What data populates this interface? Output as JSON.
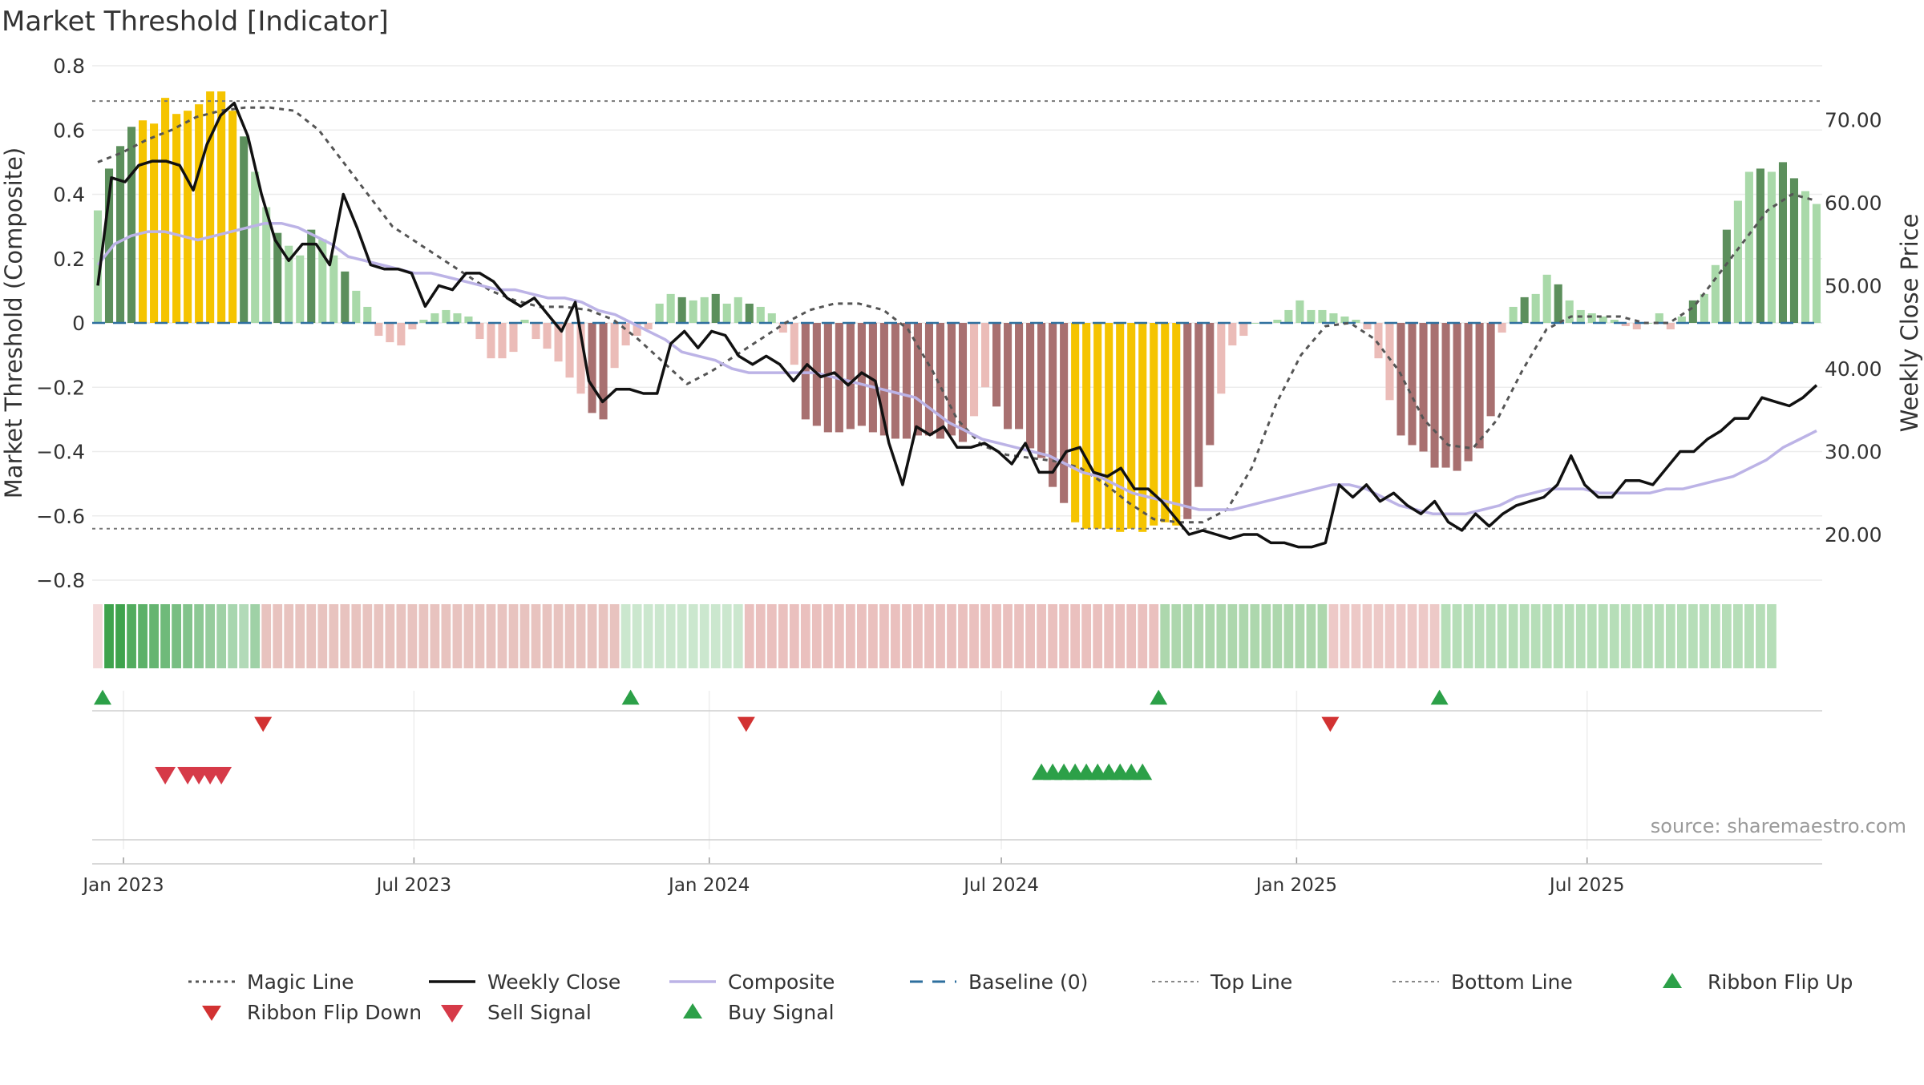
{
  "title": "Market Threshold [Indicator]",
  "source_note": "source: sharemaestro.com",
  "chart_data": {
    "type": "bar",
    "title": "Market Threshold [Indicator]",
    "ylabel": "Market Threshold (Composite)",
    "y2label": "Weekly Close Price",
    "ylim": [
      -0.8,
      0.8
    ],
    "y2lim": [
      14.5,
      76.5
    ],
    "yticks": [
      "0.8",
      "0.6",
      "0.4",
      "0.2",
      "0",
      "−0.2",
      "−0.4",
      "−0.6",
      "−0.8"
    ],
    "yticks_values": [
      0.8,
      0.6,
      0.4,
      0.2,
      0,
      -0.2,
      -0.4,
      -0.6,
      -0.8
    ],
    "y2ticks": [
      "70.00",
      "60.00",
      "50.00",
      "40.00",
      "30.00",
      "20.00"
    ],
    "y2ticks_values": [
      70,
      60,
      50,
      40,
      30,
      20
    ],
    "xticks": [
      "Jan 2023",
      "Jul 2023",
      "Jan 2024",
      "Jul 2024",
      "Jan 2025",
      "Jul 2025"
    ],
    "xticks_dates": [
      "2023-01-01",
      "2023-07-01",
      "2024-01-01",
      "2024-07-01",
      "2025-01-01",
      "2025-07-01"
    ],
    "first_week": "2022-12-16",
    "top_line": 0.69,
    "bottom_line": -0.64,
    "grid": true,
    "legend_position": "bottom",
    "colors": {
      "strong_pos": "#5c8f5c",
      "weak_pos": "#a9d9a9",
      "strong_neg": "#a87070",
      "weak_neg": "#ebbcb8",
      "extreme": "#f5c400",
      "weekly_close": "#111111",
      "composite": "#bcb3e6",
      "magic_line": "#555555",
      "baseline": "#2e6f9e",
      "ref_line": "#777777",
      "buy": "#2ca048",
      "sell": "#d63a48"
    },
    "composite": [
      0.35,
      0.48,
      0.55,
      0.61,
      0.63,
      0.62,
      0.7,
      0.65,
      0.66,
      0.68,
      0.72,
      0.72,
      0.66,
      0.58,
      0.47,
      0.36,
      0.28,
      0.24,
      0.21,
      0.29,
      0.26,
      0.21,
      0.16,
      0.1,
      0.05,
      -0.04,
      -0.06,
      -0.07,
      -0.02,
      0.01,
      0.03,
      0.04,
      0.03,
      0.02,
      -0.05,
      -0.11,
      -0.11,
      -0.09,
      0.01,
      -0.05,
      -0.08,
      -0.12,
      -0.17,
      -0.22,
      -0.28,
      -0.3,
      -0.14,
      -0.07,
      -0.04,
      -0.02,
      0.06,
      0.09,
      0.08,
      0.07,
      0.08,
      0.09,
      0.06,
      0.08,
      0.06,
      0.05,
      0.03,
      -0.03,
      -0.13,
      -0.3,
      -0.32,
      -0.34,
      -0.34,
      -0.33,
      -0.32,
      -0.34,
      -0.35,
      -0.36,
      -0.36,
      -0.35,
      -0.35,
      -0.36,
      -0.35,
      -0.37,
      -0.29,
      -0.2,
      -0.26,
      -0.33,
      -0.33,
      -0.39,
      -0.42,
      -0.51,
      -0.56,
      -0.62,
      -0.64,
      -0.64,
      -0.64,
      -0.65,
      -0.64,
      -0.65,
      -0.63,
      -0.62,
      -0.63,
      -0.61,
      -0.51,
      -0.38,
      -0.22,
      -0.07,
      -0.04,
      0.0,
      0.0,
      0.01,
      0.04,
      0.07,
      0.04,
      0.04,
      0.03,
      0.02,
      0.01,
      -0.02,
      -0.11,
      -0.24,
      -0.35,
      -0.38,
      -0.4,
      -0.45,
      -0.45,
      -0.46,
      -0.43,
      -0.39,
      -0.29,
      -0.03,
      0.05,
      0.08,
      0.09,
      0.15,
      0.12,
      0.07,
      0.04,
      0.03,
      0.02,
      0.01,
      -0.01,
      -0.02,
      0.0,
      0.03,
      -0.02,
      0.02,
      0.07,
      0.09,
      0.18,
      0.29,
      0.38,
      0.47,
      0.48,
      0.47,
      0.5,
      0.45,
      0.41,
      0.37
    ],
    "weekly_close": [
      50.0,
      63.0,
      62.5,
      64.5,
      65.0,
      65.0,
      64.5,
      61.5,
      67.0,
      70.5,
      72.0,
      68.0,
      61.0,
      55.5,
      53.0,
      55.0,
      55.0,
      52.5,
      61.0,
      57.0,
      52.5,
      52.0,
      52.0,
      51.5,
      47.5,
      50.0,
      49.5,
      51.5,
      51.5,
      50.5,
      48.5,
      47.5,
      48.5,
      46.5,
      44.5,
      48.0,
      38.5,
      36.0,
      37.5,
      37.5,
      37.0,
      37.0,
      43.0,
      44.5,
      42.5,
      44.5,
      44.0,
      41.5,
      40.5,
      41.5,
      40.5,
      38.5,
      40.5,
      39.0,
      39.5,
      38.0,
      39.5,
      38.5,
      31.0,
      26.0,
      33.0,
      32.0,
      33.0,
      30.5,
      30.5,
      31.0,
      30.0,
      28.5,
      31.0,
      27.5,
      27.5,
      30.0,
      30.5,
      27.5,
      27.0,
      28.0,
      25.5,
      25.5,
      24.0,
      22.0,
      20.0,
      20.5,
      20.0,
      19.5,
      20.0,
      20.0,
      19.0,
      19.0,
      18.5,
      18.5,
      19.0,
      26.0,
      24.5,
      26.0,
      24.0,
      25.0,
      23.5,
      22.5,
      24.0,
      21.5,
      20.5,
      22.5,
      21.0,
      22.5,
      23.5,
      24.0,
      24.5,
      26.0,
      29.5,
      26.0,
      24.5,
      24.5,
      26.5,
      26.5,
      26.0,
      28.0,
      30.0,
      30.0,
      31.5,
      32.5,
      34.0,
      34.0,
      36.5,
      36.0,
      35.5,
      36.5,
      38.0
    ],
    "composite_line": [
      52.5,
      55.0,
      56.0,
      56.5,
      56.5,
      56.0,
      55.5,
      56.0,
      56.5,
      57.0,
      57.5,
      57.5,
      57.0,
      56.0,
      55.0,
      53.5,
      53.0,
      52.5,
      52.0,
      51.5,
      51.5,
      51.0,
      50.5,
      50.0,
      49.5,
      49.5,
      49.0,
      48.5,
      48.5,
      48.0,
      47.0,
      46.5,
      45.5,
      44.5,
      43.5,
      42.0,
      41.5,
      41.0,
      40.0,
      39.5,
      39.5,
      39.5,
      39.5,
      39.5,
      39.0,
      38.5,
      38.0,
      37.5,
      37.0,
      36.5,
      35.0,
      33.5,
      32.5,
      31.5,
      31.0,
      30.5,
      30.0,
      29.5,
      28.5,
      27.5,
      27.0,
      26.0,
      25.0,
      24.5,
      24.0,
      23.5,
      23.0,
      23.0,
      23.0,
      23.5,
      24.0,
      24.5,
      25.0,
      25.5,
      26.0,
      26.0,
      25.5,
      24.5,
      23.5,
      23.0,
      22.5,
      22.5,
      22.5,
      23.0,
      23.5,
      24.5,
      25.0,
      25.5,
      25.5,
      25.5,
      25.0,
      25.0,
      25.0,
      25.0,
      25.5,
      25.5,
      26.0,
      26.5,
      27.0,
      28.0,
      29.0,
      30.5,
      31.5,
      32.5
    ],
    "magic_line": [
      0.5,
      0.53,
      0.57,
      0.6,
      0.64,
      0.66,
      0.67,
      0.67,
      0.66,
      0.6,
      0.5,
      0.4,
      0.3,
      0.25,
      0.2,
      0.15,
      0.1,
      0.07,
      0.05,
      0.05,
      0.04,
      0.01,
      -0.05,
      -0.12,
      -0.19,
      -0.15,
      -0.1,
      -0.05,
      0.0,
      0.04,
      0.06,
      0.06,
      0.04,
      -0.02,
      -0.15,
      -0.3,
      -0.38,
      -0.41,
      -0.42,
      -0.43,
      -0.45,
      -0.5,
      -0.56,
      -0.61,
      -0.62,
      -0.62,
      -0.58,
      -0.45,
      -0.25,
      -0.1,
      -0.01,
      0.0,
      -0.05,
      -0.15,
      -0.3,
      -0.38,
      -0.39,
      -0.3,
      -0.15,
      -0.02,
      0.02,
      0.02,
      0.02,
      0.0,
      0.0,
      0.05,
      0.15,
      0.25,
      0.35,
      0.4,
      0.38
    ],
    "ribbon_intensity": [
      0.2,
      1,
      1,
      0.9,
      0.85,
      0.8,
      0.75,
      0.7,
      0.65,
      0.6,
      0.55,
      0.5,
      0.45,
      0.4
    ],
    "ribbon_segments": [
      {
        "from": 0,
        "to": 1,
        "color": "#f2d3d3"
      },
      {
        "from": 1,
        "to": 15,
        "color": "#3fa34d"
      },
      {
        "from": 15,
        "to": 47,
        "color": "#e4b8b4"
      },
      {
        "from": 47,
        "to": 58,
        "color": "#c2e3c5"
      },
      {
        "from": 58,
        "to": 95,
        "color": "#e6b5b3"
      },
      {
        "from": 95,
        "to": 110,
        "color": "#9fd09f"
      },
      {
        "from": 110,
        "to": 120,
        "color": "#eabfbd"
      },
      {
        "from": 120,
        "to": 150,
        "color": "#a9d8ab"
      }
    ],
    "ribbon_flip_up_weeks": [
      1,
      48,
      95,
      120
    ],
    "ribbon_flip_down_weeks": [
      15,
      58,
      110
    ],
    "sell_signal_weeks": [
      6,
      8,
      9,
      10,
      11
    ],
    "buy_signal_weeks": [
      84,
      85,
      86,
      87,
      88,
      89,
      90,
      91,
      92,
      93
    ],
    "legend": [
      {
        "label": "Magic Line",
        "kind": "dotted-dark"
      },
      {
        "label": "Weekly Close",
        "kind": "solid-black"
      },
      {
        "label": "Composite",
        "kind": "solid-lavender"
      },
      {
        "label": "Baseline (0)",
        "kind": "dashed-blue"
      },
      {
        "label": "Top Line",
        "kind": "dotted-grey"
      },
      {
        "label": "Bottom Line",
        "kind": "dotted-grey"
      },
      {
        "label": "Ribbon Flip Up",
        "kind": "triangle-up-green"
      },
      {
        "label": "Ribbon Flip Down",
        "kind": "triangle-down-red"
      },
      {
        "label": "Sell Signal",
        "kind": "triangle-down-pink"
      },
      {
        "label": "Buy Signal",
        "kind": "triangle-up-green"
      }
    ]
  }
}
